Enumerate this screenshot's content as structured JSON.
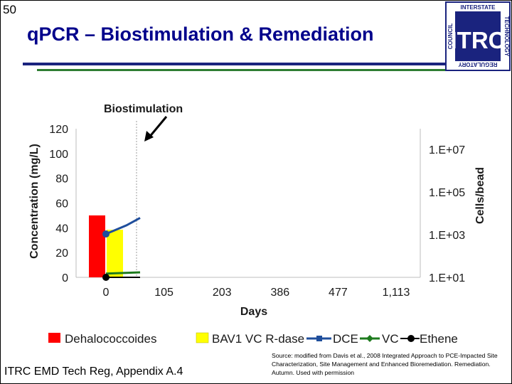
{
  "slide": {
    "number": "50",
    "title": "q​PCR – Biostimulation & Remediation",
    "footer_left": "ITRC EMD Tech Reg, Appendix A.4",
    "source_note": "Source: modified from Davis et al., 2008 Integrated Approach to PCE-Impacted Site Characterization, Site Management and Enhanced Bioremediation. Remediation. Autumn. Used with permission"
  },
  "logo": {
    "letters": "ITRC",
    "ring_top": "INTERSTATE",
    "ring_right": "TECHNOLOGY",
    "ring_bottom": "REGULATORY",
    "ring_left": "COUNCIL"
  },
  "colors": {
    "title": "#00008b",
    "dehalococcoides": "#ff0000",
    "bav1": "#ffff00",
    "dce": "#1f4e9c",
    "vc": "#1e7b1e",
    "ethene": "#000000"
  },
  "chart_data": {
    "type": "bar",
    "annotation": "Biostimulation",
    "xlabel": "Days",
    "ylabel": "Concentration (mg/L)",
    "y2label": "Cells/bead",
    "categories": [
      "0",
      "105",
      "203",
      "386",
      "477",
      "1,113"
    ],
    "ylim": [
      0,
      120
    ],
    "yticks": [
      "0",
      "20",
      "40",
      "60",
      "80",
      "100",
      "120"
    ],
    "y2_scale": "log",
    "y2lim": [
      10,
      10000000
    ],
    "y2ticks": [
      "1.E+01",
      "1.E+03",
      "1.E+05",
      "1.E+07"
    ],
    "grid": false,
    "legend_position": "bottom",
    "bar_series": [
      {
        "name": "Dehalococcoides",
        "axis": "right",
        "values": [
          8000
        ]
      },
      {
        "name": "BAV1 VC R-dase",
        "axis": "right",
        "values": [
          1700
        ]
      }
    ],
    "line_series": [
      {
        "name": "DCE",
        "axis": "left",
        "points": [
          [
            0,
            35
          ],
          [
            0.6,
            42
          ],
          [
            1,
            48
          ]
        ]
      },
      {
        "name": "VC",
        "axis": "left",
        "points": [
          [
            0,
            3
          ],
          [
            1,
            4
          ]
        ]
      },
      {
        "name": "Ethene",
        "axis": "left",
        "points": [
          [
            0,
            0
          ],
          [
            1,
            0
          ]
        ]
      }
    ],
    "legend": [
      "Dehalococcoides",
      "BAV1 VC R-dase",
      "DCE",
      "VC",
      "Ethene"
    ]
  }
}
